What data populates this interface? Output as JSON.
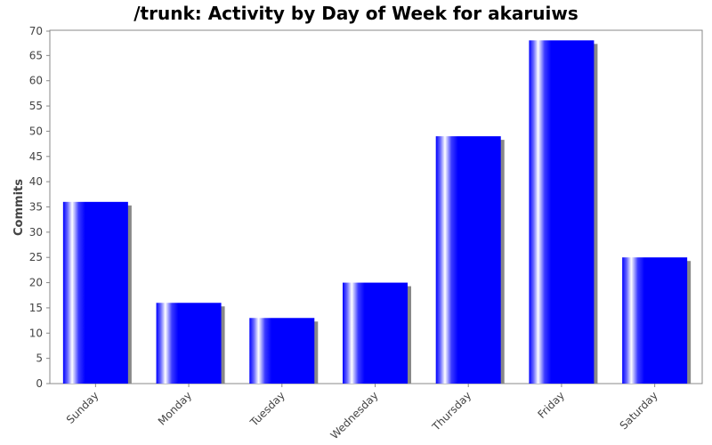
{
  "chart_data": {
    "type": "bar",
    "title": "/trunk: Activity by Day of Week for akaruiws",
    "xlabel": "",
    "ylabel": "Commits",
    "categories": [
      "Sunday",
      "Monday",
      "Tuesday",
      "Wednesday",
      "Thursday",
      "Friday",
      "Saturday"
    ],
    "values": [
      36,
      16,
      13,
      20,
      49,
      68,
      25
    ],
    "ylim": [
      0,
      70
    ],
    "yticks": [
      "0",
      "5",
      "10",
      "15",
      "20",
      "25",
      "30",
      "35",
      "40",
      "45",
      "50",
      "55",
      "60",
      "65",
      "70"
    ],
    "grid": false,
    "legend": "none",
    "colors": {
      "bar": "#0000ff",
      "bar_highlight": "#ffffff",
      "shadow": "#888888",
      "axis": "#888888",
      "plot_border": "#888888",
      "background": "#ffffff"
    }
  }
}
